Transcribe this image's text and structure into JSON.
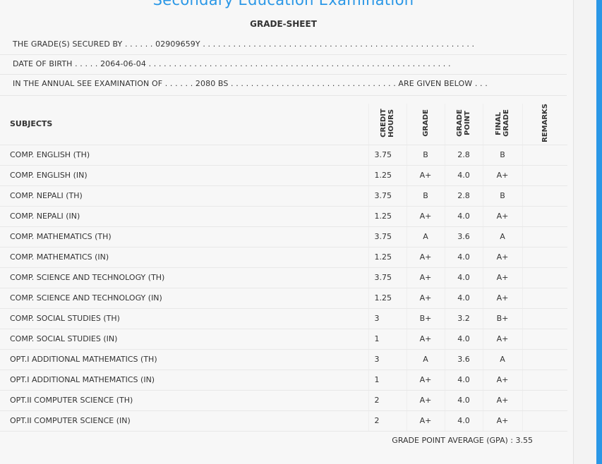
{
  "header": {
    "exam_title": "Secondary Education Examination",
    "sheet_title": "GRADE-SHEET"
  },
  "info": {
    "secured_by": "THE GRADE(S) SECURED BY . . . . . . 02909659Y . . . . . . . . . . . . . . . . . . . . . . . . . . . . . . . . . . . . . . . . . . . . . . . . . . . . . .",
    "dob": "DATE OF BIRTH . . . . . 2064-06-04 . . . . . . . . . . . . . . . . . . . . . . . . . . . . . . . . . . . . . . . . . . . . . . . . . . . . . . . . . . . .",
    "exam_line": "IN THE ANNUAL SEE EXAMINATION OF . . . . . . 2080 BS . . . . . . . . . . . . . . . . . . . . . . . . . . . . . . . . . ARE GIVEN BELOW . . ."
  },
  "columns": {
    "subjects": "SUBJECTS",
    "credit_hours": "CREDIT HOURS",
    "grade": "GRADE",
    "grade_point": "GRADE POINT",
    "final_grade": "FINAL GRADE",
    "remarks": "REMARKS"
  },
  "rows": [
    {
      "subject": "COMP. ENGLISH (TH)",
      "credit": "3.75",
      "grade": "B",
      "point": "2.8",
      "final": "B",
      "remarks": ""
    },
    {
      "subject": "COMP. ENGLISH (IN)",
      "credit": "1.25",
      "grade": "A+",
      "point": "4.0",
      "final": "A+",
      "remarks": ""
    },
    {
      "subject": "COMP. NEPALI (TH)",
      "credit": "3.75",
      "grade": "B",
      "point": "2.8",
      "final": "B",
      "remarks": ""
    },
    {
      "subject": "COMP. NEPALI (IN)",
      "credit": "1.25",
      "grade": "A+",
      "point": "4.0",
      "final": "A+",
      "remarks": ""
    },
    {
      "subject": "COMP. MATHEMATICS (TH)",
      "credit": "3.75",
      "grade": "A",
      "point": "3.6",
      "final": "A",
      "remarks": ""
    },
    {
      "subject": "COMP. MATHEMATICS (IN)",
      "credit": "1.25",
      "grade": "A+",
      "point": "4.0",
      "final": "A+",
      "remarks": ""
    },
    {
      "subject": "COMP. SCIENCE AND TECHNOLOGY (TH)",
      "credit": "3.75",
      "grade": "A+",
      "point": "4.0",
      "final": "A+",
      "remarks": ""
    },
    {
      "subject": "COMP. SCIENCE AND TECHNOLOGY (IN)",
      "credit": "1.25",
      "grade": "A+",
      "point": "4.0",
      "final": "A+",
      "remarks": ""
    },
    {
      "subject": "COMP. SOCIAL STUDIES (TH)",
      "credit": "3",
      "grade": "B+",
      "point": "3.2",
      "final": "B+",
      "remarks": ""
    },
    {
      "subject": "COMP. SOCIAL STUDIES (IN)",
      "credit": "1",
      "grade": "A+",
      "point": "4.0",
      "final": "A+",
      "remarks": ""
    },
    {
      "subject": "OPT.I ADDITIONAL MATHEMATICS (TH)",
      "credit": "3",
      "grade": "A",
      "point": "3.6",
      "final": "A",
      "remarks": ""
    },
    {
      "subject": "OPT.I ADDITIONAL MATHEMATICS (IN)",
      "credit": "1",
      "grade": "A+",
      "point": "4.0",
      "final": "A+",
      "remarks": ""
    },
    {
      "subject": "OPT.II COMPUTER SCIENCE (TH)",
      "credit": "2",
      "grade": "A+",
      "point": "4.0",
      "final": "A+",
      "remarks": ""
    },
    {
      "subject": "OPT.II COMPUTER SCIENCE (IN)",
      "credit": "2",
      "grade": "A+",
      "point": "4.0",
      "final": "A+",
      "remarks": ""
    }
  ],
  "gpa": "GRADE POINT AVERAGE (GPA) : 3.55",
  "colors": {
    "accent": "#2a97e6",
    "text": "#333333",
    "panel": "#f7f7f7"
  }
}
